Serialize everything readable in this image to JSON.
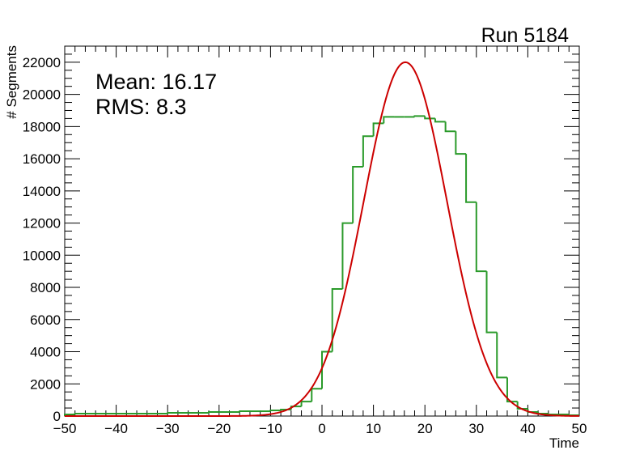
{
  "chart_data": {
    "type": "histogram",
    "title": "Run 5184",
    "xlabel": "Time",
    "ylabel": "# Segments",
    "xlim": [
      -50,
      50
    ],
    "ylim": [
      0,
      23000
    ],
    "x_ticks": [
      -50,
      -40,
      -30,
      -20,
      -10,
      0,
      10,
      20,
      30,
      40,
      50
    ],
    "y_ticks": [
      0,
      2000,
      4000,
      6000,
      8000,
      10000,
      12000,
      14000,
      16000,
      18000,
      20000,
      22000
    ],
    "stats": {
      "mean_label": "Mean: 16.17",
      "rms_label": "RMS:  8.3"
    },
    "series": [
      {
        "name": "histogram",
        "color": "#2a9a2a",
        "bin_edges": [
          -50,
          -48,
          -46,
          -44,
          -42,
          -40,
          -38,
          -36,
          -34,
          -32,
          -30,
          -28,
          -26,
          -24,
          -22,
          -20,
          -18,
          -16,
          -14,
          -12,
          -10,
          -8,
          -6,
          -4,
          -2,
          0,
          2,
          4,
          6,
          8,
          10,
          12,
          14,
          16,
          18,
          20,
          22,
          24,
          26,
          28,
          30,
          32,
          34,
          36,
          38,
          40,
          42,
          44,
          46,
          48,
          50
        ],
        "counts": [
          100,
          150,
          150,
          150,
          150,
          150,
          150,
          150,
          150,
          150,
          200,
          200,
          200,
          200,
          250,
          250,
          250,
          300,
          300,
          300,
          350,
          400,
          600,
          900,
          1700,
          4000,
          7900,
          12000,
          15500,
          17400,
          18200,
          18600,
          18600,
          18600,
          18650,
          18500,
          18300,
          17700,
          16300,
          13300,
          9000,
          5200,
          2400,
          900,
          450,
          250,
          150,
          100,
          100,
          50
        ]
      },
      {
        "name": "gaussian fit",
        "color": "#cc0000",
        "amplitude": 22000,
        "mean": 16.2,
        "sigma": 8.1
      }
    ]
  }
}
